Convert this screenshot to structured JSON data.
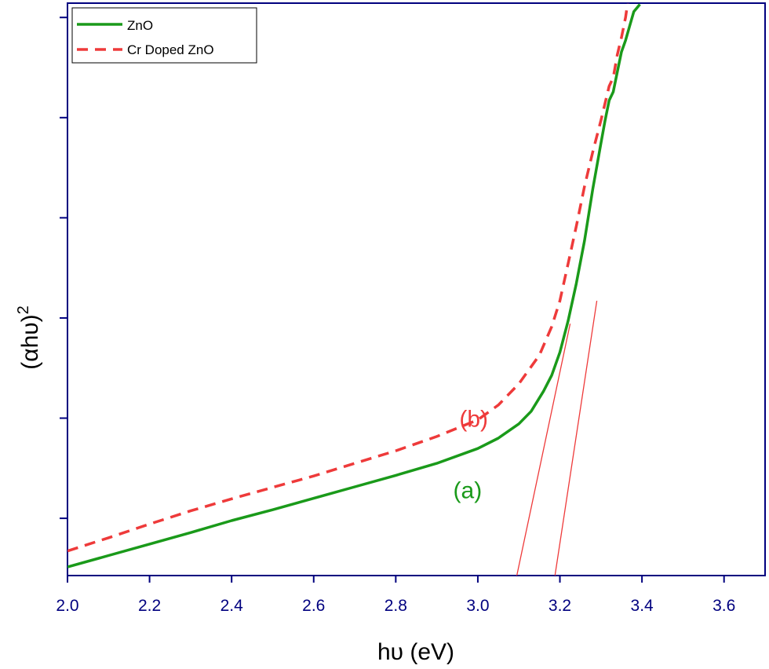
{
  "chart_data": {
    "type": "line",
    "xlabel": "hυ (eV)",
    "ylabel_base": "(αhυ)",
    "ylabel_sup": "2",
    "xlim": [
      2.0,
      3.7
    ],
    "ylim": [
      0,
      100
    ],
    "x_ticks": [
      "2.0",
      "2.2",
      "2.4",
      "2.6",
      "2.8",
      "3.0",
      "3.2",
      "3.4",
      "3.6"
    ],
    "y_ticks_unlabeled": [
      10,
      27.5,
      45,
      62.5,
      80,
      97.5
    ],
    "legend_position": "top-left",
    "colors": {
      "axis": "#00007f",
      "zno": "#1a9a1a",
      "cr": "#ee3a3a",
      "fit": "#ee3a3a"
    },
    "series": [
      {
        "name": "ZnO",
        "style": "solid",
        "x": [
          2.0,
          2.1,
          2.2,
          2.3,
          2.4,
          2.5,
          2.6,
          2.7,
          2.8,
          2.9,
          3.0,
          3.05,
          3.1,
          3.13,
          3.16,
          3.18,
          3.2,
          3.22,
          3.24,
          3.26,
          3.28,
          3.3,
          3.31,
          3.32,
          3.33,
          3.34,
          3.35,
          3.36,
          3.37,
          3.38,
          3.395
        ],
        "y": [
          1.5,
          3.5,
          5.5,
          7.5,
          9.6,
          11.5,
          13.5,
          15.5,
          17.5,
          19.6,
          22.2,
          24.0,
          26.5,
          28.7,
          32.2,
          35.0,
          39.0,
          44.5,
          51.0,
          58.5,
          67.5,
          75.5,
          79.5,
          83.0,
          84.5,
          88.0,
          91.5,
          93.5,
          96.0,
          98.5,
          99.8
        ]
      },
      {
        "name": "Cr Doped ZnO",
        "style": "dashed",
        "x": [
          2.0,
          2.1,
          2.2,
          2.3,
          2.4,
          2.5,
          2.6,
          2.7,
          2.8,
          2.9,
          3.0,
          3.05,
          3.1,
          3.15,
          3.18,
          3.2,
          3.22,
          3.24,
          3.26,
          3.28,
          3.3,
          3.32,
          3.33,
          3.34,
          3.35,
          3.36,
          3.365
        ],
        "y": [
          4.3,
          6.6,
          9.0,
          11.3,
          13.4,
          15.4,
          17.4,
          19.6,
          21.8,
          24.3,
          27.2,
          29.8,
          33.5,
          38.5,
          43.5,
          48.0,
          54.5,
          61.0,
          68.0,
          74.0,
          79.5,
          85.5,
          87.0,
          91.0,
          94.0,
          97.5,
          100
        ]
      }
    ],
    "fit_lines": [
      {
        "x": [
          3.095,
          3.225
        ],
        "y": [
          0,
          44
        ]
      },
      {
        "x": [
          3.188,
          3.29
        ],
        "y": [
          0,
          48
        ]
      }
    ],
    "annotations": [
      {
        "text": "(a)",
        "x": 2.975,
        "y": 13.5,
        "color": "#1a9a1a"
      },
      {
        "text": "(b)",
        "x": 2.99,
        "y": 26.0,
        "color": "#ee3a3a"
      }
    ]
  }
}
